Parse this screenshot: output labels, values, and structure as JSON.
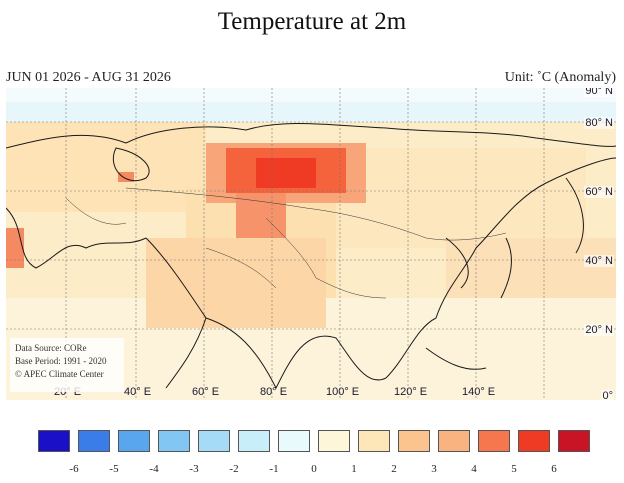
{
  "header": {
    "title": "Temperature at 2m",
    "period": "JUN 01 2026 - AUG 31 2026",
    "unit": "Unit: ˚C (Anomaly)"
  },
  "map": {
    "lat_labels": [
      "90° N",
      "80° N",
      "60° N",
      "40° N",
      "20° N",
      "0°"
    ],
    "lon_labels": [
      "20° E",
      "40° E",
      "60° E",
      "80° E",
      "100° E",
      "120° E",
      "140° E"
    ],
    "source": {
      "line1": "Data Source: CORe",
      "line2": "Base Period: 1991 - 2020",
      "line3": "© APEC Climate Center"
    }
  },
  "legend": {
    "colors": [
      "#1a10c8",
      "#3a7de8",
      "#5aa6ee",
      "#82c6f4",
      "#a6dbf7",
      "#c8eefa",
      "#e9fafd",
      "#fdf6d8",
      "#fde6b8",
      "#fbc48e",
      "#f8b380",
      "#f6764d",
      "#ef3a24",
      "#c81424"
    ],
    "ticks": [
      "-6",
      "-5",
      "-4",
      "-3",
      "-2",
      "-1",
      "0",
      "1",
      "2",
      "3",
      "4",
      "5",
      "6"
    ]
  }
}
